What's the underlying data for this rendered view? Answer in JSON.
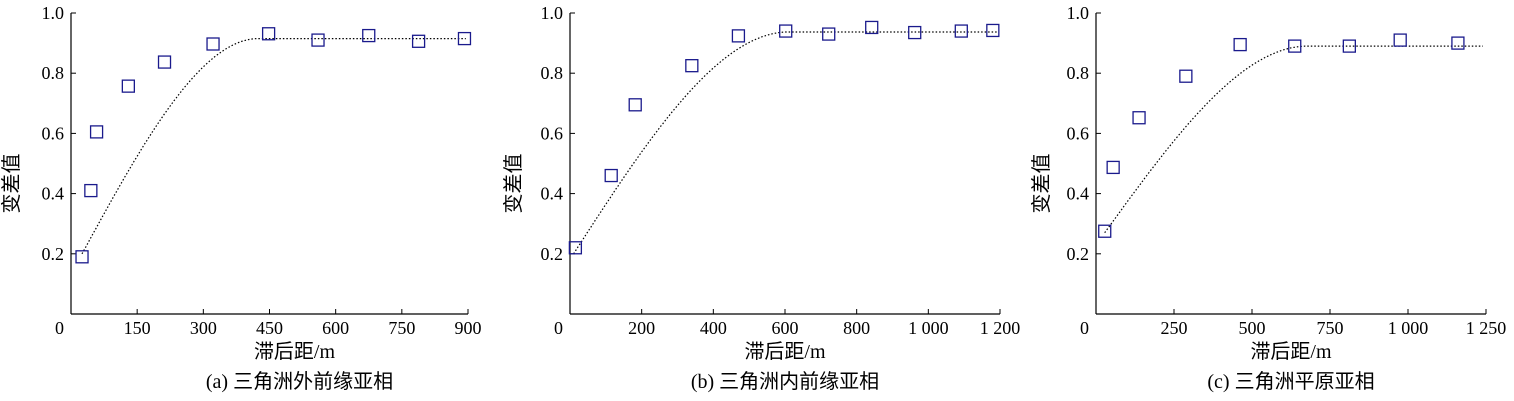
{
  "chart_data": [
    {
      "type": "scatter",
      "panel_label": "(a) 三角洲外前缘亚相",
      "xlabel": "滞后距/m",
      "ylabel": "变差值",
      "xlim": [
        0,
        900
      ],
      "ylim": [
        0,
        1.0
      ],
      "xticks": [
        "0",
        "150",
        "300",
        "450",
        "600",
        "750",
        "900"
      ],
      "yticks": [
        "0.2",
        "0.4",
        "0.6",
        "0.8",
        "1.0"
      ],
      "points": [
        {
          "x": 25,
          "y": 0.19
        },
        {
          "x": 45,
          "y": 0.41
        },
        {
          "x": 58,
          "y": 0.605
        },
        {
          "x": 130,
          "y": 0.757
        },
        {
          "x": 212,
          "y": 0.837
        },
        {
          "x": 322,
          "y": 0.897
        },
        {
          "x": 448,
          "y": 0.931
        },
        {
          "x": 560,
          "y": 0.91
        },
        {
          "x": 675,
          "y": 0.925
        },
        {
          "x": 788,
          "y": 0.906
        },
        {
          "x": 892,
          "y": 0.915
        }
      ],
      "fit": {
        "model": "spherical",
        "nugget": 0.2,
        "sill": 0.915,
        "range": 400,
        "x_start": 25,
        "x_end": 895
      }
    },
    {
      "type": "scatter",
      "panel_label": "(b) 三角洲内前缘亚相",
      "xlabel": "滞后距/m",
      "ylabel": "变差值",
      "xlim": [
        0,
        1200
      ],
      "ylim": [
        0,
        1.0
      ],
      "xticks": [
        "0",
        "200",
        "400",
        "600",
        "800",
        "1 000",
        "1 200"
      ],
      "yticks": [
        "0.2",
        "0.4",
        "0.6",
        "0.8",
        "1.0"
      ],
      "points": [
        {
          "x": 15,
          "y": 0.22
        },
        {
          "x": 115,
          "y": 0.46
        },
        {
          "x": 182,
          "y": 0.695
        },
        {
          "x": 340,
          "y": 0.825
        },
        {
          "x": 470,
          "y": 0.924
        },
        {
          "x": 602,
          "y": 0.94
        },
        {
          "x": 722,
          "y": 0.93
        },
        {
          "x": 842,
          "y": 0.952
        },
        {
          "x": 962,
          "y": 0.935
        },
        {
          "x": 1092,
          "y": 0.94
        },
        {
          "x": 1180,
          "y": 0.942
        }
      ],
      "fit": {
        "model": "spherical",
        "nugget": 0.2,
        "sill": 0.937,
        "range": 600,
        "x_start": 10,
        "x_end": 1195
      }
    },
    {
      "type": "scatter",
      "panel_label": "(c) 三角洲平原亚相",
      "xlabel": "滞后距/m",
      "ylabel": "变差值",
      "xlim": [
        0,
        1250
      ],
      "ylim": [
        0,
        1.0
      ],
      "xticks": [
        "0",
        "250",
        "500",
        "750",
        "1 000",
        "1 250"
      ],
      "yticks": [
        "0.2",
        "0.4",
        "0.6",
        "0.8",
        "1.0"
      ],
      "points": [
        {
          "x": 28,
          "y": 0.275
        },
        {
          "x": 55,
          "y": 0.487
        },
        {
          "x": 138,
          "y": 0.652
        },
        {
          "x": 288,
          "y": 0.79
        },
        {
          "x": 462,
          "y": 0.895
        },
        {
          "x": 637,
          "y": 0.89
        },
        {
          "x": 812,
          "y": 0.89
        },
        {
          "x": 975,
          "y": 0.91
        },
        {
          "x": 1160,
          "y": 0.9
        }
      ],
      "fit": {
        "model": "spherical",
        "nugget": 0.27,
        "sill": 0.89,
        "range": 650,
        "x_start": 28,
        "x_end": 1240
      }
    }
  ]
}
